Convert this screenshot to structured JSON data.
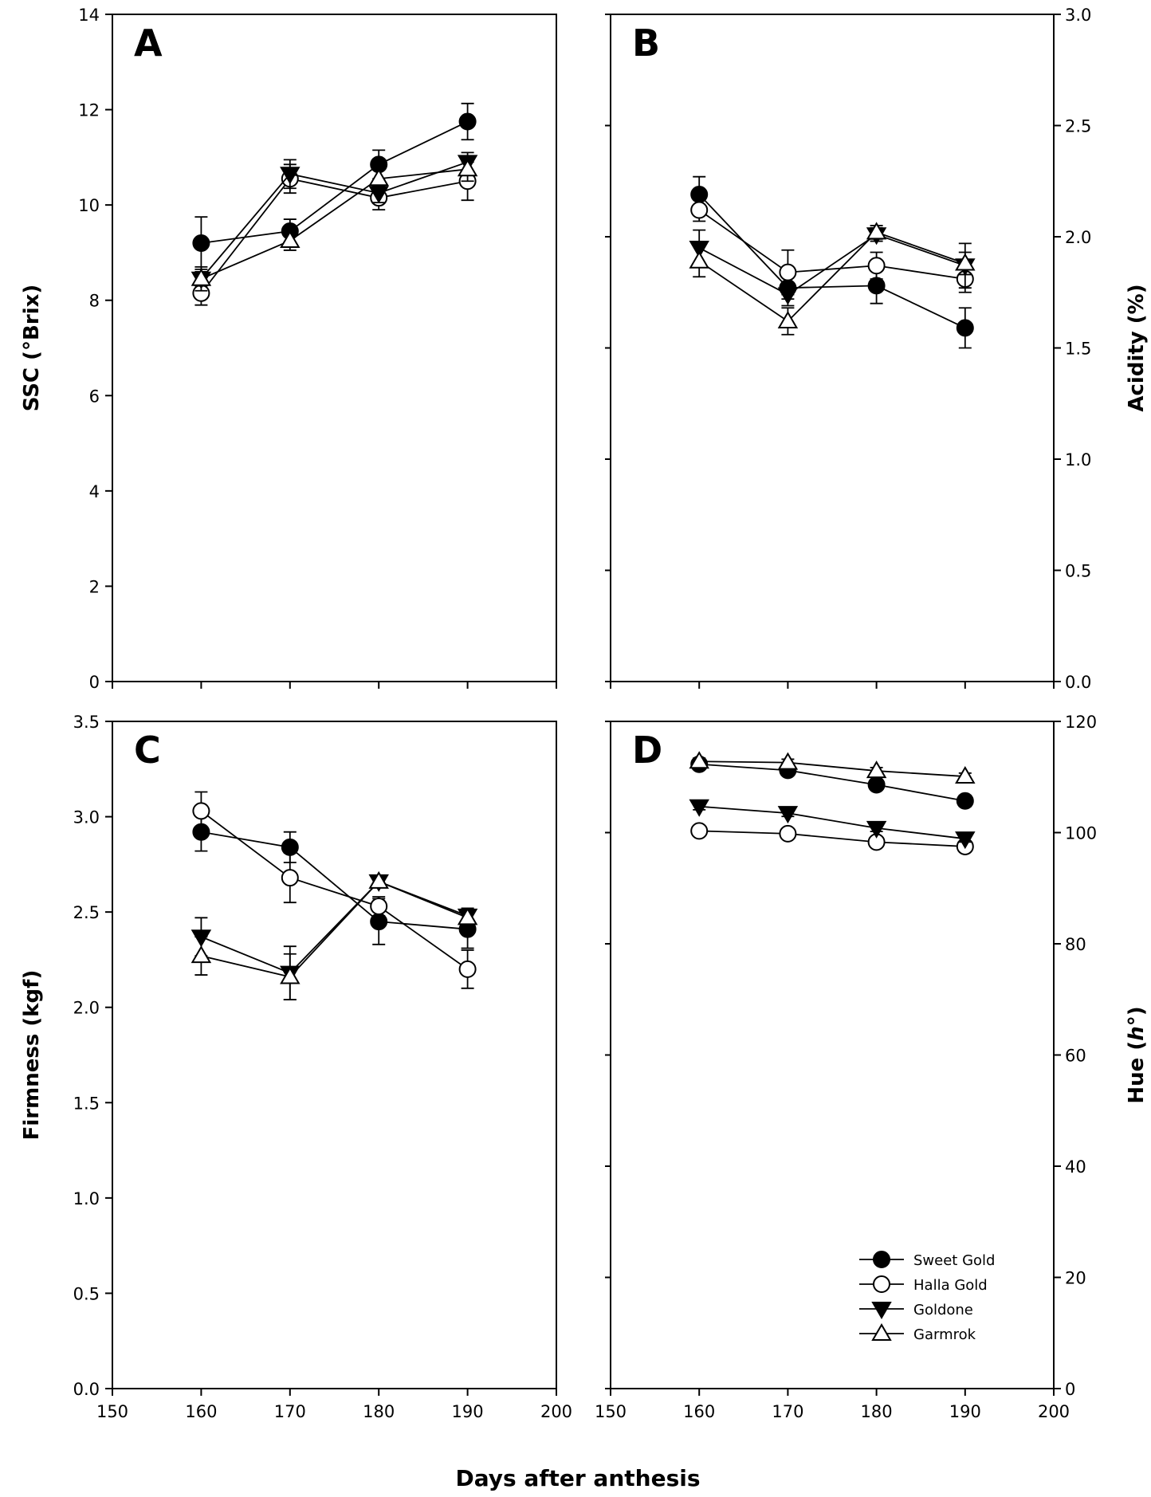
{
  "figure": {
    "xlabel": "Days after anthesis"
  },
  "legend": {
    "placement": "bottom-right of panel D",
    "entries": [
      {
        "name": "Sweet Gold",
        "marker": "filled-circle"
      },
      {
        "name": "Halla Gold",
        "marker": "open-circle"
      },
      {
        "name": "Goldone",
        "marker": "filled-triangle-down"
      },
      {
        "name": "Garmrok",
        "marker": "open-triangle-up"
      }
    ]
  },
  "chart_data": [
    {
      "type": "line",
      "panel": "A",
      "ylabel": "SSC (°Brix)",
      "y_axis_side": "left",
      "xlim": [
        150,
        200
      ],
      "ylim": [
        0,
        14
      ],
      "xticks": [
        150,
        160,
        170,
        180,
        190,
        200
      ],
      "yticks": [
        0,
        2,
        4,
        6,
        8,
        10,
        12,
        14
      ],
      "ytick_labels": [
        "0",
        "2",
        "4",
        "6",
        "8",
        "10",
        "12",
        "14"
      ],
      "x": [
        160,
        170,
        180,
        190
      ],
      "grid": false,
      "series": [
        {
          "name": "Sweet Gold",
          "marker": "filled-circle",
          "values": [
            9.2,
            9.45,
            10.85,
            11.75
          ],
          "err": [
            0.55,
            0.25,
            0.3,
            0.38
          ]
        },
        {
          "name": "Halla Gold",
          "marker": "open-circle",
          "values": [
            8.15,
            10.55,
            10.15,
            10.5
          ],
          "err": [
            0.25,
            0.3,
            0.25,
            0.4
          ]
        },
        {
          "name": "Goldone",
          "marker": "filled-triangle-down",
          "values": [
            8.45,
            10.65,
            10.25,
            10.9
          ],
          "err": [
            0.25,
            0.3,
            0.2,
            0.2
          ]
        },
        {
          "name": "Garmrok",
          "marker": "open-triangle-up",
          "values": [
            8.45,
            9.25,
            10.55,
            10.75
          ],
          "err": [
            0.15,
            0.2,
            0.2,
            0.25
          ]
        }
      ]
    },
    {
      "type": "line",
      "panel": "B",
      "ylabel": "Acidity (%)",
      "y_axis_side": "right",
      "xlim": [
        150,
        200
      ],
      "ylim": [
        0,
        3
      ],
      "xticks": [
        150,
        160,
        170,
        180,
        190,
        200
      ],
      "yticks": [
        0,
        0.5,
        1,
        1.5,
        2,
        2.5,
        3
      ],
      "ytick_labels": [
        "0.0",
        "0.5",
        "1.0",
        "1.5",
        "2.0",
        "2.5",
        "3.0"
      ],
      "x": [
        160,
        170,
        180,
        190
      ],
      "grid": false,
      "series": [
        {
          "name": "Sweet Gold",
          "marker": "filled-circle",
          "values": [
            2.19,
            1.77,
            1.78,
            1.59
          ],
          "err": [
            0.08,
            0.05,
            0.08,
            0.09
          ]
        },
        {
          "name": "Halla Gold",
          "marker": "open-circle",
          "values": [
            2.12,
            1.84,
            1.87,
            1.81
          ],
          "err": [
            0.05,
            0.1,
            0.06,
            0.06
          ]
        },
        {
          "name": "Goldone",
          "marker": "filled-triangle-down",
          "values": [
            1.95,
            1.74,
            2.01,
            1.87
          ],
          "err": [
            0.08,
            0.05,
            0.03,
            0.1
          ]
        },
        {
          "name": "Garmrok",
          "marker": "open-triangle-up",
          "values": [
            1.89,
            1.62,
            2.02,
            1.88
          ],
          "err": [
            0.07,
            0.06,
            0.03,
            0.05
          ]
        }
      ]
    },
    {
      "type": "line",
      "panel": "C",
      "ylabel": "Firmness (kgf)",
      "y_axis_side": "left",
      "xlim": [
        150,
        200
      ],
      "ylim": [
        0,
        3.5
      ],
      "xticks": [
        150,
        160,
        170,
        180,
        190,
        200
      ],
      "xtick_labels": [
        "150",
        "160",
        "170",
        "180",
        "190",
        "200"
      ],
      "yticks": [
        0,
        0.5,
        1,
        1.5,
        2,
        2.5,
        3,
        3.5
      ],
      "ytick_labels": [
        "0.0",
        "0.5",
        "1.0",
        "1.5",
        "2.0",
        "2.5",
        "3.0",
        "3.5"
      ],
      "x": [
        160,
        170,
        180,
        190
      ],
      "grid": false,
      "series": [
        {
          "name": "Sweet Gold",
          "marker": "filled-circle",
          "values": [
            2.92,
            2.84,
            2.45,
            2.41
          ],
          "err": [
            0.1,
            0.08,
            0.12,
            0.1
          ]
        },
        {
          "name": "Halla Gold",
          "marker": "open-circle",
          "values": [
            3.03,
            2.68,
            2.53,
            2.2
          ],
          "err": [
            0.1,
            0.13,
            0.05,
            0.1
          ]
        },
        {
          "name": "Goldone",
          "marker": "filled-triangle-down",
          "values": [
            2.37,
            2.18,
            2.66,
            2.48
          ],
          "err": [
            0.1,
            0.14,
            0.03,
            0.04
          ]
        },
        {
          "name": "Garmrok",
          "marker": "open-triangle-up",
          "values": [
            2.27,
            2.16,
            2.66,
            2.47
          ],
          "err": [
            0.1,
            0.12,
            0.03,
            0.04
          ]
        }
      ]
    },
    {
      "type": "line",
      "panel": "D",
      "ylabel_text": "Hue (",
      "ylabel_italic": "h",
      "ylabel_suffix": "°)",
      "y_axis_side": "right",
      "xlim": [
        150,
        200
      ],
      "ylim": [
        0,
        120
      ],
      "xticks": [
        150,
        160,
        170,
        180,
        190,
        200
      ],
      "xtick_labels": [
        "150",
        "160",
        "170",
        "180",
        "190",
        "200"
      ],
      "yticks": [
        0,
        20,
        40,
        60,
        80,
        100,
        120
      ],
      "ytick_labels": [
        "0",
        "20",
        "40",
        "60",
        "80",
        "100",
        "120"
      ],
      "x": [
        160,
        170,
        180,
        190
      ],
      "grid": false,
      "series": [
        {
          "name": "Sweet Gold",
          "marker": "filled-circle",
          "values": [
            112.3,
            111.2,
            108.6,
            105.7
          ],
          "err": [
            0.8,
            0.8,
            0.8,
            1.0
          ]
        },
        {
          "name": "Halla Gold",
          "marker": "open-circle",
          "values": [
            100.3,
            99.8,
            98.3,
            97.5
          ],
          "err": [
            0.6,
            0.6,
            0.6,
            0.6
          ]
        },
        {
          "name": "Goldone",
          "marker": "filled-triangle-down",
          "values": [
            104.7,
            103.5,
            100.8,
            98.9
          ],
          "err": [
            0.6,
            0.6,
            0.6,
            0.6
          ]
        },
        {
          "name": "Garmrok",
          "marker": "open-triangle-up",
          "values": [
            112.8,
            112.6,
            111.1,
            110.1
          ],
          "err": [
            0.6,
            0.6,
            0.6,
            0.6
          ]
        }
      ]
    }
  ]
}
